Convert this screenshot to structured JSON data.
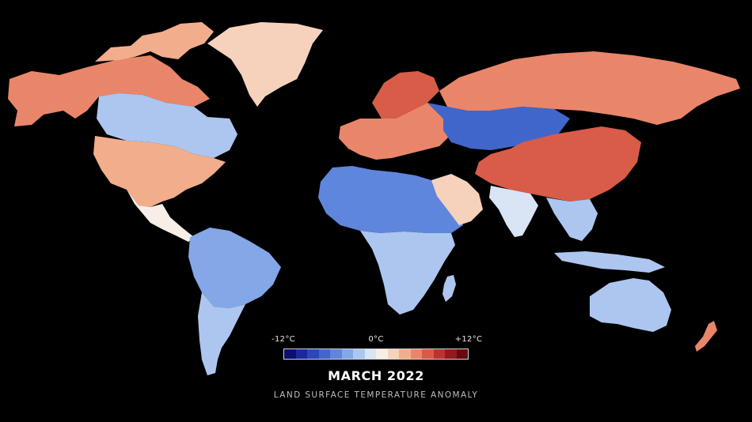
{
  "map": {
    "title": "MARCH 2022",
    "subtitle": "LAND SURFACE TEMPERATURE ANOMALY",
    "background_color": "#000000",
    "land_base_color": "#efe6e0",
    "regions": [
      {
        "name": "alaska-canada",
        "anomaly": 5
      },
      {
        "name": "canadian-arctic-archipelago",
        "anomaly": 4
      },
      {
        "name": "greenland",
        "anomaly": 3
      },
      {
        "name": "central-canada",
        "anomaly": -3
      },
      {
        "name": "usa",
        "anomaly": 4
      },
      {
        "name": "mexico-central-america",
        "anomaly": 1
      },
      {
        "name": "northern-south-america",
        "anomaly": -4
      },
      {
        "name": "southern-south-america",
        "anomaly": -2
      },
      {
        "name": "europe",
        "anomaly": 6
      },
      {
        "name": "scandinavia",
        "anomaly": 7
      },
      {
        "name": "north-africa",
        "anomaly": -6
      },
      {
        "name": "central-southern-africa",
        "anomaly": -3
      },
      {
        "name": "madagascar",
        "anomaly": -2
      },
      {
        "name": "arabia",
        "anomaly": 2
      },
      {
        "name": "northern-russia",
        "anomaly": 6
      },
      {
        "name": "kazakhstan-central-asia",
        "anomaly": -7
      },
      {
        "name": "mongolia-china",
        "anomaly": 7
      },
      {
        "name": "india",
        "anomaly": -1
      },
      {
        "name": "southeast-asia",
        "anomaly": -2
      },
      {
        "name": "australia",
        "anomaly": -3
      },
      {
        "name": "new-zealand",
        "anomaly": 5
      }
    ]
  },
  "legend": {
    "min_label": "-12°C",
    "mid_label": "0°C",
    "max_label": "+12°C",
    "min": -12,
    "max": 12,
    "colors": [
      "#0b0f6e",
      "#1a2a9a",
      "#2b47b8",
      "#4166cc",
      "#5e86dc",
      "#84a7e8",
      "#adc6f0",
      "#d9e4f5",
      "#f7efe7",
      "#f6d2bc",
      "#f2ae8c",
      "#e9866a",
      "#d85b48",
      "#bb3330",
      "#931a1e",
      "#640a10"
    ]
  }
}
